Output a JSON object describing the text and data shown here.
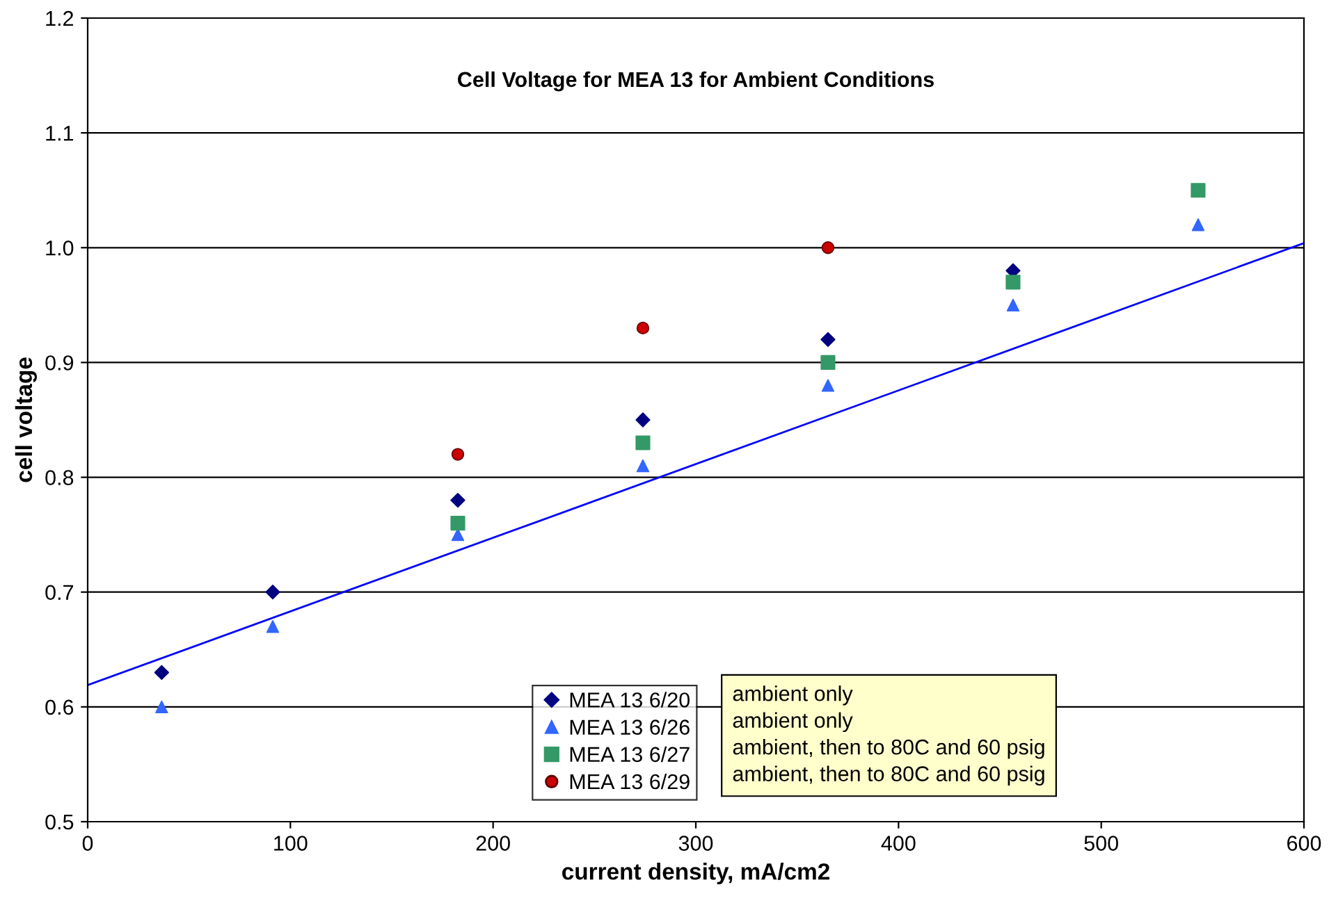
{
  "chart_data": {
    "type": "scatter",
    "title": "Cell Voltage for MEA 13 for Ambient Conditions",
    "xlabel": "current density, mA/cm2",
    "ylabel": "cell voltage",
    "series": [
      {
        "name": "MEA 13 6/20",
        "color": "#000080",
        "marker": "diamond",
        "x": [
          36.5,
          91.3,
          182.6,
          273.9,
          365.2,
          456.5
        ],
        "values": [
          0.63,
          0.7,
          0.78,
          0.85,
          0.92,
          0.98
        ]
      },
      {
        "name": "MEA 13 6/26",
        "color": "#3366ff",
        "marker": "triangle",
        "x": [
          36.5,
          91.3,
          182.6,
          273.9,
          365.2,
          456.5,
          547.8
        ],
        "values": [
          0.6,
          0.67,
          0.75,
          0.81,
          0.88,
          0.95,
          1.02
        ]
      },
      {
        "name": "MEA 13 6/27",
        "color": "#339966",
        "marker": "square",
        "x": [
          182.6,
          273.9,
          365.2,
          456.5,
          547.8
        ],
        "values": [
          0.76,
          0.83,
          0.9,
          0.97,
          1.05
        ]
      },
      {
        "name": "MEA 13 6/29",
        "color": "#cc0000",
        "marker": "circle",
        "x": [
          182.6,
          273.9,
          365.2
        ],
        "values": [
          0.82,
          0.93,
          1.0
        ]
      },
      {
        "type": "line",
        "color": "#0000ff",
        "marker": "none",
        "line_style": "solid",
        "x": [
          0,
          600
        ],
        "values": [
          0.619,
          1.004
        ]
      }
    ],
    "annotations": [
      "ambient only",
      "ambient only",
      "ambient, then to 80C and 60 psig",
      "ambient, then to 80C and 60 psig"
    ],
    "xlim": [
      0,
      600
    ],
    "xticks": [
      0,
      100,
      200,
      300,
      400,
      500,
      600
    ],
    "ylim": [
      0.5,
      1.2
    ],
    "yticks": [
      0.5,
      0.6,
      0.7,
      0.8,
      0.9,
      {
        "value": 1,
        "label": "1.0"
      },
      1.1,
      1.2
    ],
    "grid": "y",
    "legend": "bottom"
  }
}
